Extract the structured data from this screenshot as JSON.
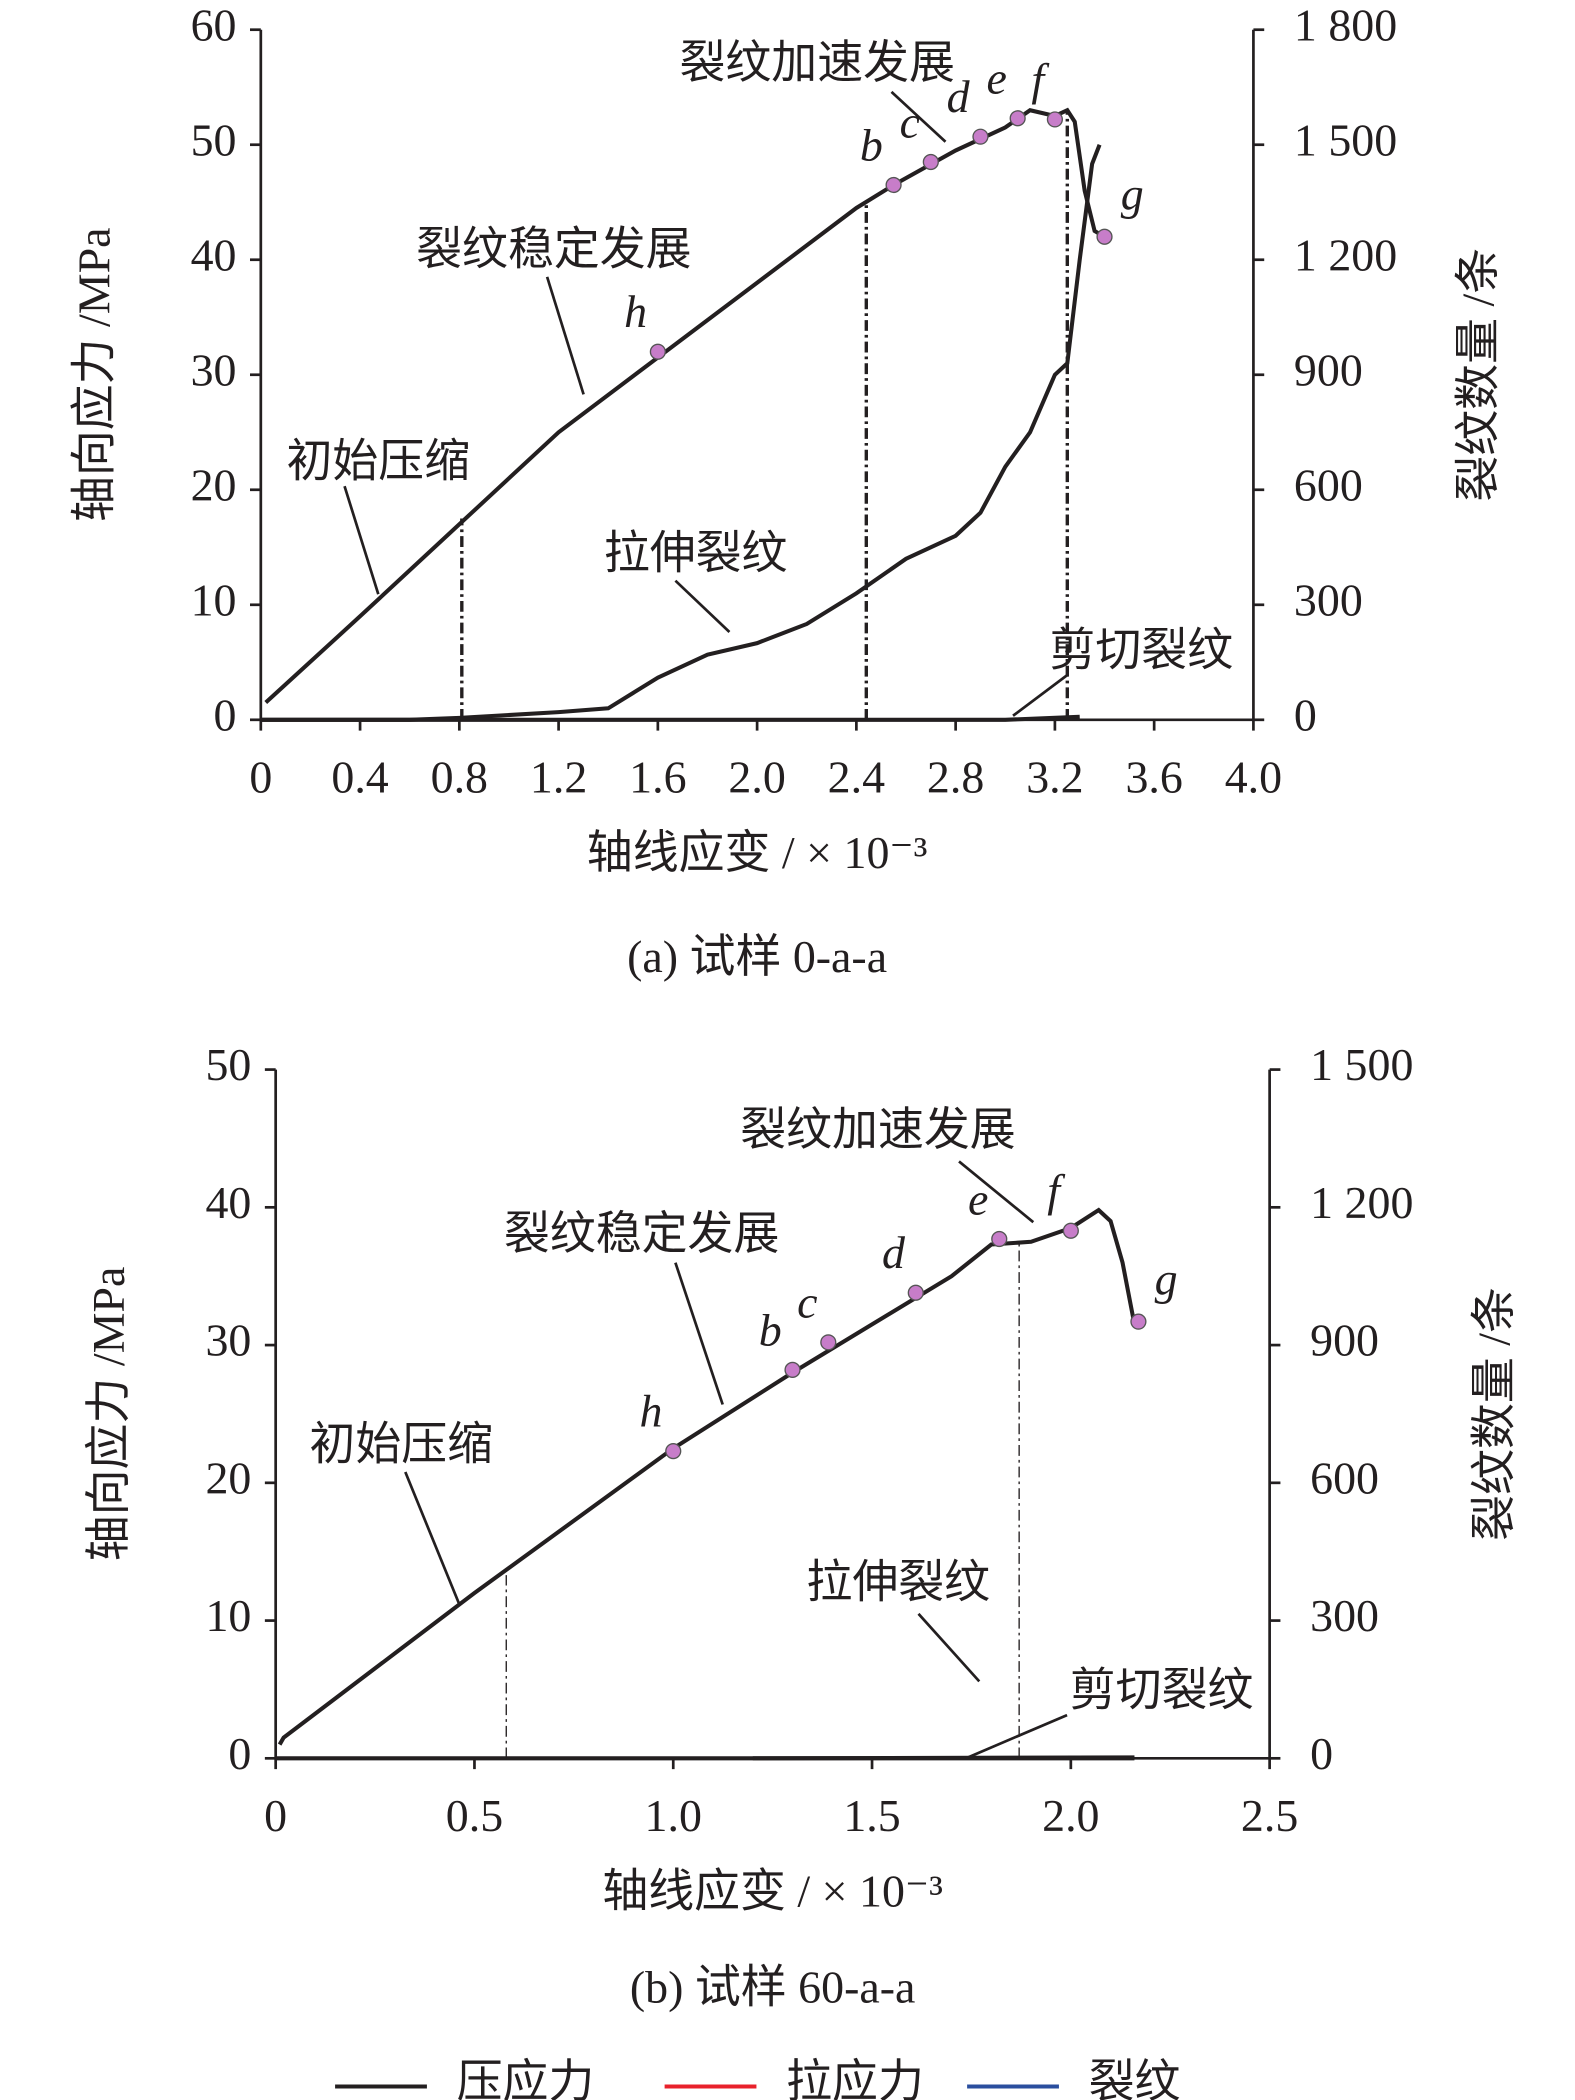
{
  "chart_data": [
    {
      "type": "line",
      "caption": "(a) 试样 0-a-a",
      "ylabel": "轴向应力 /MPa",
      "y2label": "裂纹数量 /条",
      "xlabel": "轴线应变 / × 10⁻³",
      "xlim": [
        0,
        4
      ],
      "xticks": [
        0,
        0.4,
        0.8,
        1.2,
        1.6,
        {
          "value": 2,
          "label": "2.0"
        },
        2.4,
        2.8,
        3.2,
        3.6,
        {
          "value": 4,
          "label": "4.0"
        }
      ],
      "ylim": [
        0,
        60
      ],
      "yticks": [
        0,
        10,
        20,
        30,
        40,
        50,
        60
      ],
      "y2lim": [
        0,
        1800
      ],
      "y2ticks": [
        0,
        300,
        600,
        900,
        {
          "value": 1200,
          "label": "1 200"
        },
        {
          "value": 1500,
          "label": "1 500"
        },
        {
          "value": 1800,
          "label": "1 800"
        }
      ],
      "series": [
        {
          "name": "压应力",
          "color": "#231f20",
          "x": [
            0.02,
            0.4,
            0.8,
            1.2,
            1.6,
            2.0,
            2.4,
            2.55,
            2.8,
            3.0,
            3.1,
            3.2,
            3.25,
            3.28,
            3.32,
            3.36,
            3.4
          ],
          "values": [
            1.5,
            9,
            17,
            25,
            31.5,
            38,
            44.5,
            46.5,
            49.5,
            51.5,
            53,
            52.5,
            53,
            52,
            46,
            42.5,
            42
          ]
        },
        {
          "name": "拉伸裂纹",
          "color": "#231f20",
          "axis": "y2",
          "x": [
            0,
            0.6,
            0.8,
            1.2,
            1.4,
            1.5,
            1.6,
            1.8,
            2.0,
            2.2,
            2.4,
            2.6,
            2.8,
            2.9,
            3.0,
            3.1,
            3.2,
            3.25,
            3.3,
            3.35,
            3.38
          ],
          "values": [
            0,
            0,
            5,
            20,
            30,
            70,
            110,
            170,
            200,
            250,
            330,
            420,
            480,
            540,
            660,
            750,
            900,
            930,
            1200,
            1450,
            1500
          ]
        },
        {
          "name": "剪切裂纹",
          "color": "#231f20",
          "axis": "y2",
          "x": [
            0,
            3.0,
            3.3
          ],
          "values": [
            0,
            0,
            8
          ]
        }
      ],
      "points": {
        "color": "#c77dc9",
        "labels": [
          "h",
          "b",
          "c",
          "d",
          "e",
          "f",
          "g"
        ],
        "x": [
          1.6,
          2.55,
          2.7,
          2.9,
          3.05,
          3.2,
          3.4
        ],
        "values": [
          32,
          46.5,
          48.5,
          50.7,
          52.3,
          52.2,
          42
        ]
      },
      "vlines": [
        {
          "x": 0.81,
          "y": 17.5
        },
        {
          "x": 2.44,
          "y": 45
        },
        {
          "x": 3.25,
          "y": 53
        }
      ],
      "annotations": [
        "初始压缩",
        "裂纹稳定发展",
        "裂纹加速发展",
        "拉伸裂纹",
        "剪切裂纹"
      ]
    },
    {
      "type": "line",
      "caption": "(b) 试样 60-a-a",
      "ylabel": "轴向应力 /MPa",
      "y2label": "裂纹数量 /条",
      "xlabel": "轴线应变 / × 10⁻³",
      "xlim": [
        0,
        2.5
      ],
      "xticks": [
        0,
        0.5,
        {
          "value": 1,
          "label": "1.0"
        },
        1.5,
        {
          "value": 2,
          "label": "2.0"
        },
        2.5
      ],
      "ylim": [
        0,
        50
      ],
      "yticks": [
        0,
        10,
        20,
        30,
        40,
        50
      ],
      "y2lim": [
        0,
        1500
      ],
      "y2ticks": [
        0,
        300,
        600,
        900,
        {
          "value": 1200,
          "label": "1 200"
        },
        {
          "value": 1500,
          "label": "1 500"
        }
      ],
      "series": [
        {
          "name": "压应力",
          "color": "#231f20",
          "x": [
            0.01,
            0.02,
            0.5,
            1.0,
            1.3,
            1.5,
            1.7,
            1.8,
            1.9,
            2.0,
            2.07,
            2.1,
            2.13,
            2.15,
            2.16
          ],
          "values": [
            1,
            1.5,
            12,
            22.5,
            28,
            31.5,
            35,
            37.3,
            37.5,
            38.5,
            39.8,
            39,
            36,
            33,
            31.5
          ]
        },
        {
          "name": "拉伸裂纹",
          "color": "#231f20",
          "axis": "y2",
          "x": [
            1.2,
            2.16
          ],
          "values": [
            0,
            2
          ]
        },
        {
          "name": "剪切裂纹",
          "color": "#231f20",
          "axis": "y2",
          "x": [
            0,
            2.16
          ],
          "values": [
            0,
            0
          ]
        }
      ],
      "points": {
        "color": "#c77dc9",
        "labels": [
          "h",
          "b",
          "c",
          "d",
          "e",
          "f",
          "g"
        ],
        "x": [
          1.0,
          1.3,
          1.39,
          1.61,
          1.82,
          2.0,
          2.17
        ],
        "values": [
          22.3,
          28.2,
          30.2,
          33.8,
          37.7,
          38.3,
          31.7
        ]
      },
      "vlines": [
        {
          "x": 0.58,
          "y": 13.3
        },
        {
          "x": 1.87,
          "y": 37.3
        }
      ],
      "annotations": [
        "初始压缩",
        "裂纹稳定发展",
        "裂纹加速发展",
        "拉伸裂纹",
        "剪切裂纹"
      ]
    }
  ],
  "legend": [
    {
      "name": "压应力",
      "color": "#231f20"
    },
    {
      "name": "拉应力",
      "color": "#e8212b"
    },
    {
      "name": "裂纹",
      "color": "#2a4e9e"
    }
  ]
}
